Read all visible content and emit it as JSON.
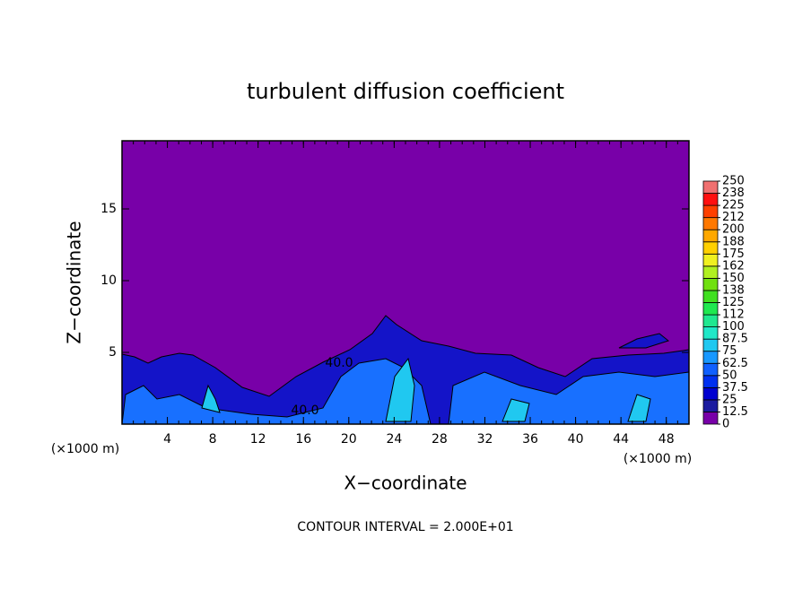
{
  "chart_data": {
    "type": "contour",
    "title": "turbulent diffusion coefficient",
    "x_label": "X−coordinate",
    "y_label": "Z−coordinate",
    "x_unit": "(×1000 m)",
    "footer": "CONTOUR INTERVAL = 2.000E+01",
    "annotations": [
      "40.0",
      "40.0"
    ],
    "xlim": [
      0,
      50
    ],
    "xticks": [
      4,
      8,
      12,
      16,
      20,
      24,
      28,
      32,
      36,
      40,
      44,
      48
    ],
    "ylim": [
      0,
      19.75
    ],
    "yticks": [
      5,
      10,
      15
    ],
    "background_color": "#7800a8",
    "colorbar": {
      "levels": [
        0,
        12.5,
        25,
        37.5,
        50,
        62.5,
        75,
        87.5,
        100,
        {
          "value": 112.5,
          "label": "112"
        },
        125,
        {
          "value": 137.5,
          "label": "138"
        },
        150,
        {
          "value": 162.5,
          "label": "162"
        },
        175,
        {
          "value": 187.5,
          "label": "188"
        },
        200,
        {
          "value": 212.5,
          "label": "212"
        },
        225,
        {
          "value": 237.5,
          "label": "238"
        },
        250
      ],
      "colors": [
        "#7800a8",
        "#1c1ca0",
        "#0000d0",
        "#0030f0",
        "#1060ff",
        "#1898ff",
        "#20c8f0",
        "#20e8c8",
        "#20e890",
        "#20e850",
        "#40e020",
        "#70e010",
        "#b0f020",
        "#f0f020",
        "#ffd000",
        "#ffa800",
        "#ff7800",
        "#ff4000",
        "#ff1010",
        "#f07070"
      ]
    }
  }
}
